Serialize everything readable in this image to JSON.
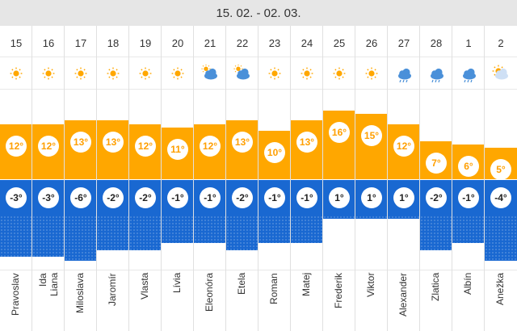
{
  "header": {
    "range": "15. 02. - 02. 03."
  },
  "colors": {
    "warm": "#ffa700",
    "cold": "#1968d1"
  },
  "days": [
    {
      "day": "15",
      "icon": "sun-icon",
      "max": "12°",
      "min": "-3°",
      "max_v": 12,
      "min_v": -3,
      "name": "Pravoslav"
    },
    {
      "day": "16",
      "icon": "sun-icon",
      "max": "12°",
      "min": "-3°",
      "max_v": 12,
      "min_v": -3,
      "name": "Ida\nLiana"
    },
    {
      "day": "17",
      "icon": "sun-icon",
      "max": "13°",
      "min": "-6°",
      "max_v": 13,
      "min_v": -6,
      "name": "Miloslava"
    },
    {
      "day": "18",
      "icon": "sun-icon",
      "max": "13°",
      "min": "-2°",
      "max_v": 13,
      "min_v": -2,
      "name": "Jaromír"
    },
    {
      "day": "19",
      "icon": "sun-icon",
      "max": "12°",
      "min": "-2°",
      "max_v": 12,
      "min_v": -2,
      "name": "Vlasta"
    },
    {
      "day": "20",
      "icon": "sun-icon",
      "max": "11°",
      "min": "-1°",
      "max_v": 11,
      "min_v": -1,
      "name": "Lívia"
    },
    {
      "day": "21",
      "icon": "partly-cloudy-icon",
      "max": "12°",
      "min": "-1°",
      "max_v": 12,
      "min_v": -1,
      "name": "Eleonóra"
    },
    {
      "day": "22",
      "icon": "partly-cloudy-icon",
      "max": "13°",
      "min": "-2°",
      "max_v": 13,
      "min_v": -2,
      "name": "Etela"
    },
    {
      "day": "23",
      "icon": "sun-icon",
      "max": "10°",
      "min": "-1°",
      "max_v": 10,
      "min_v": -1,
      "name": "Roman"
    },
    {
      "day": "24",
      "icon": "sun-icon",
      "max": "13°",
      "min": "-1°",
      "max_v": 13,
      "min_v": -1,
      "name": "Matej"
    },
    {
      "day": "25",
      "icon": "sun-icon",
      "max": "16°",
      "min": "1°",
      "max_v": 16,
      "min_v": 1,
      "name": "Frederik"
    },
    {
      "day": "26",
      "icon": "sun-icon",
      "max": "15°",
      "min": "1°",
      "max_v": 15,
      "min_v": 1,
      "name": "Viktor"
    },
    {
      "day": "27",
      "icon": "rain-cloud-icon",
      "max": "12°",
      "min": "1°",
      "max_v": 12,
      "min_v": 1,
      "name": "Alexander"
    },
    {
      "day": "28",
      "icon": "rain-cloud-icon",
      "max": "7°",
      "min": "-2°",
      "max_v": 7,
      "min_v": -2,
      "name": "Zlatica"
    },
    {
      "day": "1",
      "icon": "rain-cloud-icon",
      "max": "6°",
      "min": "-1°",
      "max_v": 6,
      "min_v": -1,
      "name": "Albín"
    },
    {
      "day": "2",
      "icon": "sun-cloud-icon",
      "max": "5°",
      "min": "-4°",
      "max_v": 5,
      "min_v": -4,
      "name": "Anežka"
    }
  ]
}
